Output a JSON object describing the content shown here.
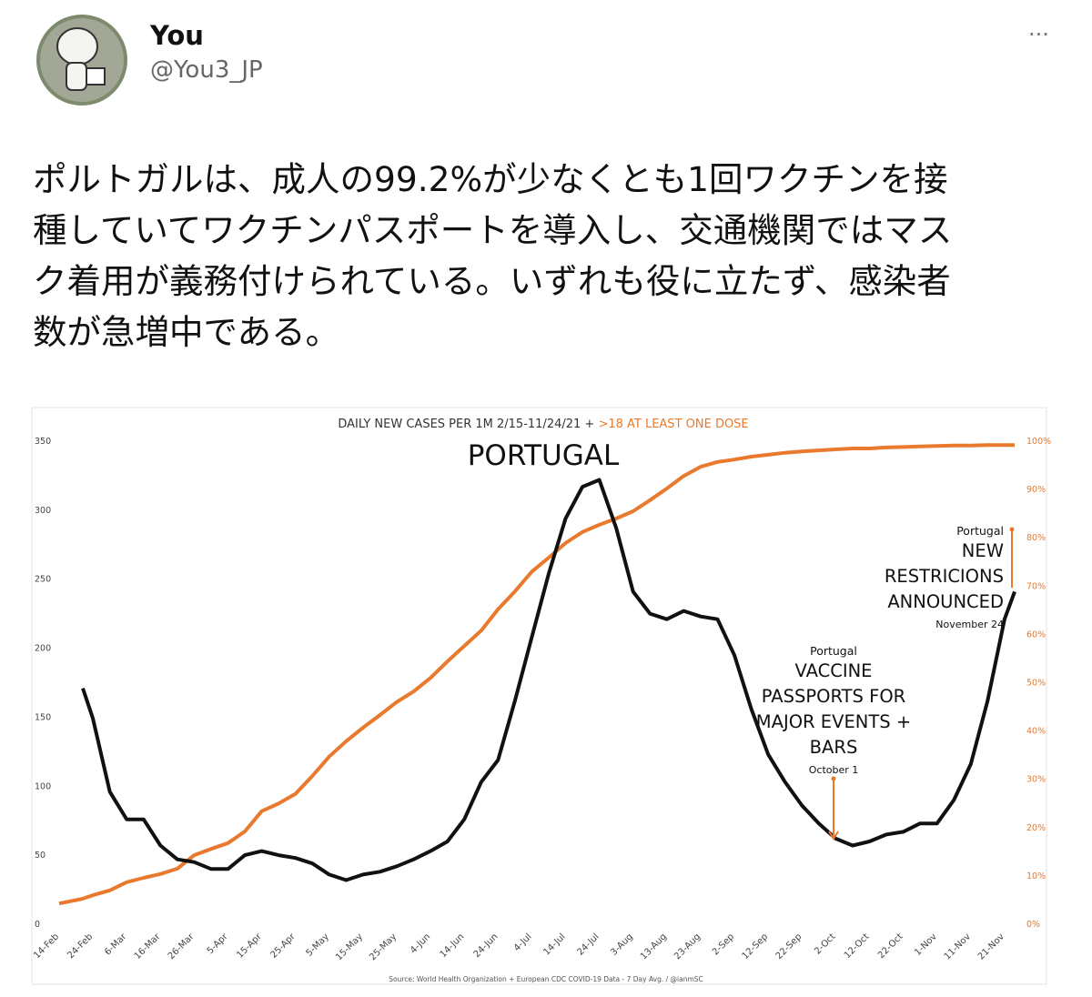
{
  "tweet": {
    "name": "You",
    "handle": "@You3_JP",
    "more": "···",
    "text_lines": [
      "ポルトガルは、成人の99.2%が少なくとも1回ワクチンを接",
      "種していてワクチンパスポートを導入し、交通機関ではマス",
      "ク着用が義務付けられている。いずれも役に立たず、感染者",
      "数が急増中である。"
    ]
  },
  "chart_data": {
    "type": "line",
    "title_parts": [
      {
        "text": "DAILY NEW CASES PER 1M 2/15-11/24/21 + ",
        "color": "#333333"
      },
      {
        "text": ">18 AT LEAST ONE DOSE",
        "color": "#e8792d"
      }
    ],
    "subtitle": "PORTUGAL",
    "source": "Source: World Health Organization + European CDC COVID-19 Data - 7 Day Avg. / @ianmSC",
    "x": [
      "14-Feb",
      "19-Feb",
      "21-Feb",
      "24-Feb",
      "1-Mar",
      "6-Mar",
      "11-Mar",
      "16-Mar",
      "21-Mar",
      "26-Mar",
      "31-Mar",
      "5-Apr",
      "10-Apr",
      "15-Apr",
      "20-Apr",
      "25-Apr",
      "30-Apr",
      "5-May",
      "10-May",
      "15-May",
      "20-May",
      "25-May",
      "30-May",
      "4-Jun",
      "9-Jun",
      "14-Jun",
      "19-Jun",
      "24-Jun",
      "29-Jun",
      "4-Jul",
      "9-Jul",
      "14-Jul",
      "19-Jul",
      "24-Jul",
      "29-Jul",
      "3-Aug",
      "8-Aug",
      "13-Aug",
      "18-Aug",
      "23-Aug",
      "28-Aug",
      "2-Sep",
      "7-Sep",
      "12-Sep",
      "17-Sep",
      "22-Sep",
      "27-Sep",
      "2-Oct",
      "7-Oct",
      "12-Oct",
      "17-Oct",
      "22-Oct",
      "27-Oct",
      "1-Nov",
      "6-Nov",
      "11-Nov",
      "16-Nov",
      "21-Nov",
      "24-Nov"
    ],
    "xlim": [
      "14-Feb",
      "24-Nov"
    ],
    "xticks": [
      "14-Feb",
      "24-Feb",
      "6-Mar",
      "16-Mar",
      "26-Mar",
      "5-Apr",
      "15-Apr",
      "25-Apr",
      "5-May",
      "15-May",
      "25-May",
      "4-Jun",
      "14-Jun",
      "24-Jun",
      "4-Jul",
      "14-Jul",
      "24-Jul",
      "3-Aug",
      "13-Aug",
      "23-Aug",
      "2-Sep",
      "12-Sep",
      "22-Sep",
      "2-Oct",
      "12-Oct",
      "22-Oct",
      "1-Nov",
      "11-Nov",
      "21-Nov"
    ],
    "ylim": [
      0,
      350
    ],
    "yticks": [
      0,
      50,
      100,
      150,
      200,
      250,
      300,
      350
    ],
    "y2lim": [
      0,
      100
    ],
    "y2ticks": [
      {
        "value": 0,
        "label": "0%"
      },
      {
        "value": 10,
        "label": "10%"
      },
      {
        "value": 20,
        "label": "20%"
      },
      {
        "value": 30,
        "label": "30%"
      },
      {
        "value": 40,
        "label": "40%"
      },
      {
        "value": 50,
        "label": "50%"
      },
      {
        "value": 60,
        "label": "60%"
      },
      {
        "value": 70,
        "label": "70%"
      },
      {
        "value": 80,
        "label": "80%"
      },
      {
        "value": 90,
        "label": "90%"
      },
      {
        "value": 100,
        "label": "100%"
      }
    ],
    "series": [
      {
        "color": "#e8792d",
        "axis": "y2",
        "values": [
          4.3,
          5,
          5.3,
          6,
          7,
          8.7,
          9.6,
          10.4,
          11.5,
          14.3,
          15.6,
          16.8,
          19.2,
          23.4,
          25,
          27,
          30.7,
          34.7,
          37.9,
          40.7,
          43.3,
          46,
          48.2,
          51,
          54.4,
          57.6,
          60.8,
          65.2,
          68.9,
          73,
          75.9,
          78.9,
          81.2,
          82.7,
          84,
          85.5,
          87.8,
          90.2,
          92.8,
          94.7,
          95.7,
          96.2,
          96.8,
          97.2,
          97.6,
          97.9,
          98.1,
          98.3,
          98.5,
          98.5,
          98.7,
          98.8,
          98.9,
          99,
          99.1,
          99.1,
          99.2,
          99.2,
          99.2
        ]
      },
      {
        "color": "#111111",
        "values": [
          null,
          null,
          171,
          149,
          96,
          76,
          76,
          57,
          47,
          45,
          40,
          40,
          50,
          53,
          50,
          48,
          44,
          36,
          32,
          36,
          38,
          42,
          47,
          53,
          60,
          76,
          103,
          119,
          162,
          208,
          254,
          294,
          317,
          322,
          287,
          241,
          225,
          221,
          227,
          223,
          221,
          195,
          156,
          123,
          103,
          86,
          73,
          62,
          57,
          60,
          65,
          67,
          73,
          73,
          90,
          116,
          162,
          221,
          241
        ]
      }
    ],
    "annotations": [
      {
        "label": "Portugal",
        "text": [
          "VACCINE",
          "PASSPORTS FOR",
          "MAJOR EVENTS +",
          "BARS"
        ],
        "date": "October 1"
      },
      {
        "label": "Portugal",
        "text": [
          "NEW",
          "RESTRICIONS",
          "ANNOUNCED"
        ],
        "date": "November 24"
      }
    ]
  }
}
